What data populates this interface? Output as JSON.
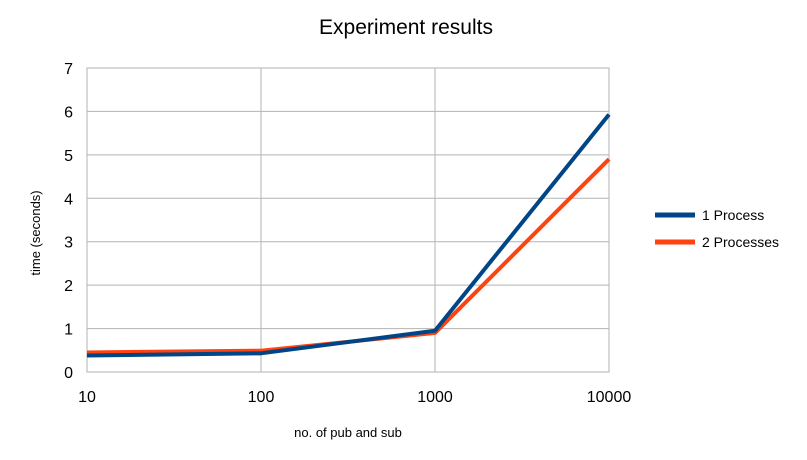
{
  "chart_data": {
    "type": "line",
    "title": "Experiment results",
    "xlabel": "no. of pub and sub",
    "ylabel": "time (seconds)",
    "x_scale": "log",
    "categories": [
      "10",
      "100",
      "1000",
      "10000"
    ],
    "y_ticks": [
      "0",
      "1",
      "2",
      "3",
      "4",
      "5",
      "6",
      "7"
    ],
    "ylim": [
      0,
      7
    ],
    "grid": true,
    "legend_position": "right",
    "series": [
      {
        "name": "1 Process",
        "color": "#004586",
        "values": [
          0.38,
          0.43,
          0.95,
          5.93
        ]
      },
      {
        "name": "2 Processes",
        "color": "#ff420e",
        "values": [
          0.45,
          0.49,
          0.9,
          4.9
        ]
      }
    ]
  }
}
